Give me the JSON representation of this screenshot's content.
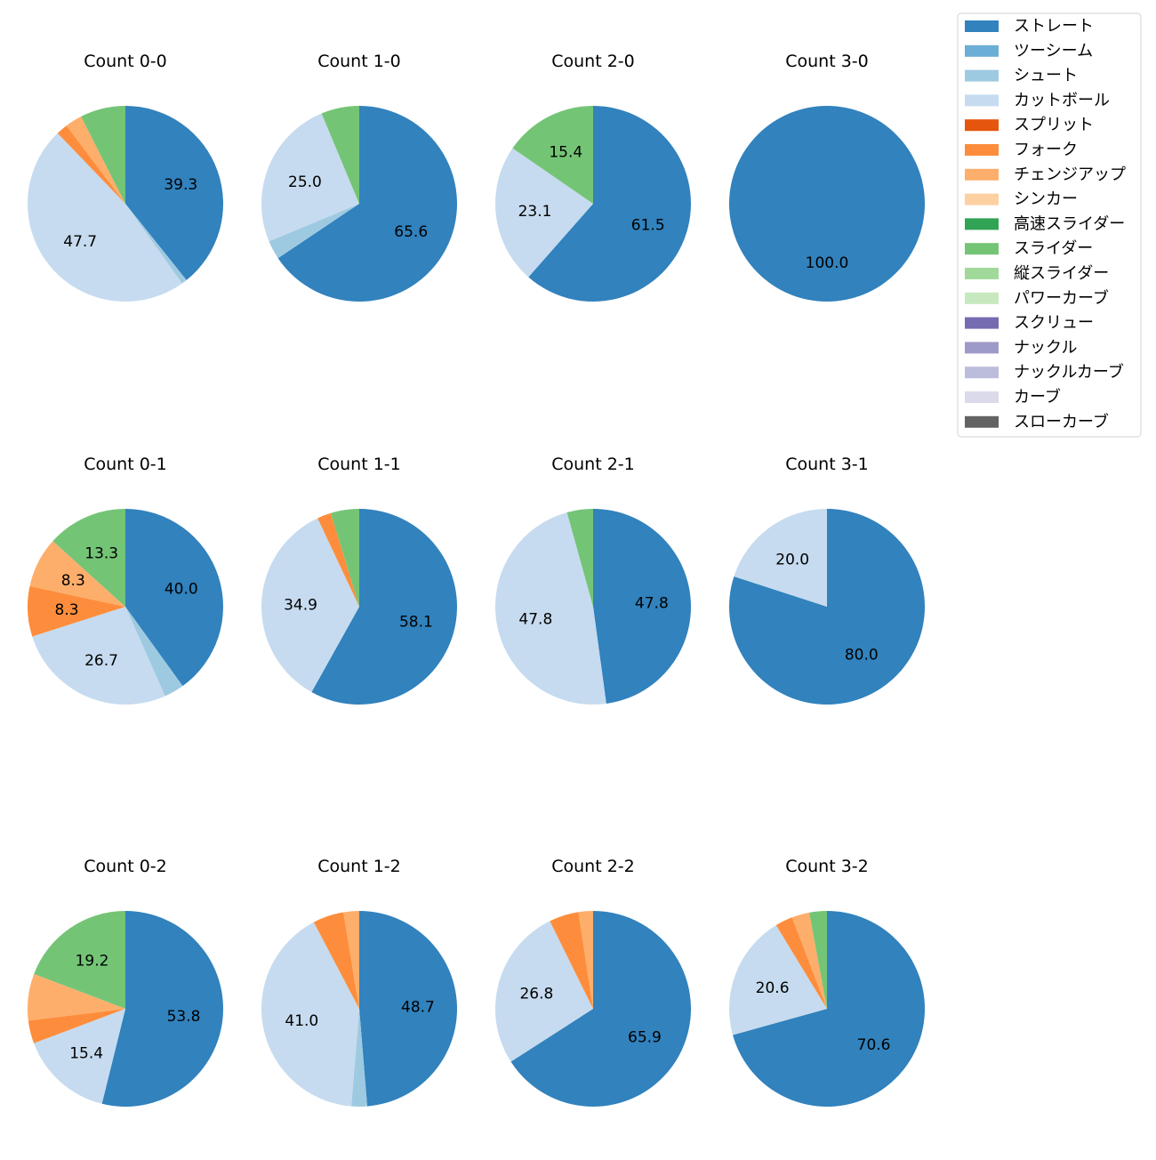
{
  "chart_data": {
    "type": "pie",
    "legend_position": "top-right",
    "legend": [
      {
        "name": "ストレート",
        "color": "#3182bd"
      },
      {
        "name": "ツーシーム",
        "color": "#6baed6"
      },
      {
        "name": "シュート",
        "color": "#9ecae1"
      },
      {
        "name": "カットボール",
        "color": "#c6dbef"
      },
      {
        "name": "スプリット",
        "color": "#e6550d"
      },
      {
        "name": "フォーク",
        "color": "#fd8d3c"
      },
      {
        "name": "チェンジアップ",
        "color": "#fdae6b"
      },
      {
        "name": "シンカー",
        "color": "#fdd0a2"
      },
      {
        "name": "高速スライダー",
        "color": "#31a354"
      },
      {
        "name": "スライダー",
        "color": "#74c476"
      },
      {
        "name": "縦スライダー",
        "color": "#a1d99b"
      },
      {
        "name": "パワーカーブ",
        "color": "#c7e9c0"
      },
      {
        "name": "スクリュー",
        "color": "#756bb1"
      },
      {
        "name": "ナックル",
        "color": "#9e9ac8"
      },
      {
        "name": "ナックルカーブ",
        "color": "#bcbddc"
      },
      {
        "name": "カーブ",
        "color": "#dadaeb"
      },
      {
        "name": "スローカーブ",
        "color": "#636363"
      }
    ],
    "pies": [
      {
        "title": "Count 0-0",
        "slices": [
          [
            "ストレート",
            39.3
          ],
          [
            "シュート",
            0.9
          ],
          [
            "カットボール",
            47.7
          ],
          [
            "フォーク",
            1.9
          ],
          [
            "チェンジアップ",
            2.8
          ],
          [
            "スライダー",
            7.5
          ]
        ]
      },
      {
        "title": "Count 1-0",
        "slices": [
          [
            "ストレート",
            65.6
          ],
          [
            "シュート",
            3.1
          ],
          [
            "カットボール",
            25.0
          ],
          [
            "スライダー",
            6.3
          ]
        ]
      },
      {
        "title": "Count 2-0",
        "slices": [
          [
            "ストレート",
            61.5
          ],
          [
            "カットボール",
            23.1
          ],
          [
            "スライダー",
            15.4
          ]
        ]
      },
      {
        "title": "Count 3-0",
        "slices": [
          [
            "ストレート",
            100.0
          ]
        ]
      },
      {
        "title": "Count 0-1",
        "slices": [
          [
            "ストレート",
            40.0
          ],
          [
            "シュート",
            3.3
          ],
          [
            "カットボール",
            26.7
          ],
          [
            "フォーク",
            8.3
          ],
          [
            "チェンジアップ",
            8.3
          ],
          [
            "スライダー",
            13.3
          ]
        ]
      },
      {
        "title": "Count 1-1",
        "slices": [
          [
            "ストレート",
            58.1
          ],
          [
            "カットボール",
            34.9
          ],
          [
            "フォーク",
            2.3
          ],
          [
            "スライダー",
            4.7
          ]
        ]
      },
      {
        "title": "Count 2-1",
        "slices": [
          [
            "ストレート",
            47.8
          ],
          [
            "カットボール",
            47.8
          ],
          [
            "スライダー",
            4.3
          ]
        ]
      },
      {
        "title": "Count 3-1",
        "slices": [
          [
            "ストレート",
            80.0
          ],
          [
            "カットボール",
            20.0
          ]
        ]
      },
      {
        "title": "Count 0-2",
        "slices": [
          [
            "ストレート",
            53.8
          ],
          [
            "カットボール",
            15.4
          ],
          [
            "フォーク",
            3.8
          ],
          [
            "チェンジアップ",
            7.7
          ],
          [
            "スライダー",
            19.2
          ]
        ]
      },
      {
        "title": "Count 1-2",
        "slices": [
          [
            "ストレート",
            48.7
          ],
          [
            "シュート",
            2.6
          ],
          [
            "カットボール",
            41.0
          ],
          [
            "フォーク",
            5.1
          ],
          [
            "チェンジアップ",
            2.6
          ]
        ]
      },
      {
        "title": "Count 2-2",
        "slices": [
          [
            "ストレート",
            65.9
          ],
          [
            "カットボール",
            26.8
          ],
          [
            "フォーク",
            4.9
          ],
          [
            "チェンジアップ",
            2.4
          ]
        ]
      },
      {
        "title": "Count 3-2",
        "slices": [
          [
            "ストレート",
            70.6
          ],
          [
            "カットボール",
            20.6
          ],
          [
            "フォーク",
            2.9
          ],
          [
            "チェンジアップ",
            2.9
          ],
          [
            "スライダー",
            2.9
          ]
        ]
      }
    ]
  }
}
